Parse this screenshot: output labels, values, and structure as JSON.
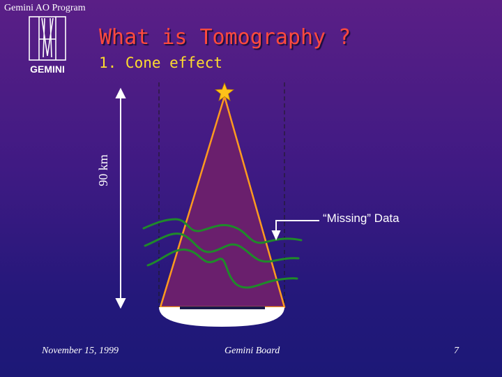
{
  "header": {
    "program": "Gemini AO Program",
    "logo_text": "GEMINI"
  },
  "slide": {
    "title": "What is Tomography ?",
    "subtitle": "1. Cone effect"
  },
  "diagram": {
    "height_label": "90 km",
    "missing_label": "“Missing” Data"
  },
  "footer": {
    "date": "November 15, 1999",
    "center": "Gemini Board",
    "page": "7"
  },
  "colors": {
    "title": "#ff4a3d",
    "subtitle": "#ffdc2e",
    "cone_fill": "#6a1f6d",
    "cone_edge": "#ff9a1f",
    "star": "#ffc21a",
    "turbulence": "#1f8a2a",
    "telescope": "#ffffff"
  }
}
